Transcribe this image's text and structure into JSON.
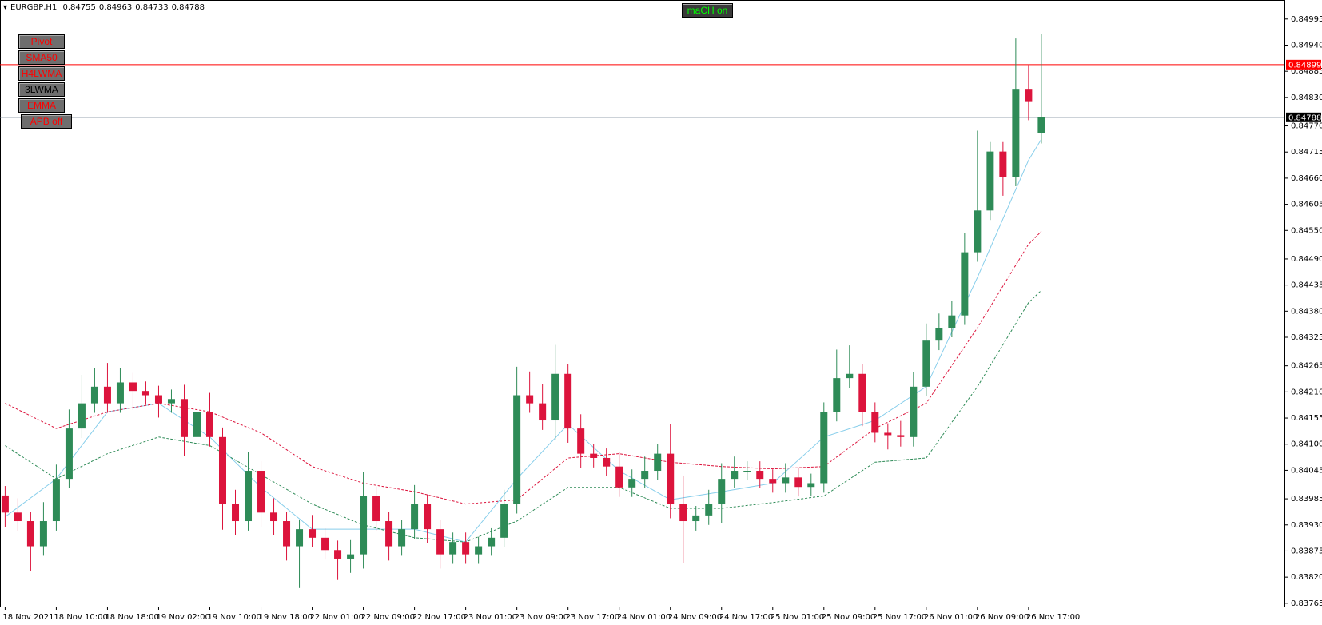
{
  "chart_data": {
    "type": "candlestick",
    "symbol": "EURGBP,H1",
    "up_color": "#2e8b57",
    "down_color": "#dc143c",
    "open": [
      0.83992,
      0.83956,
      0.83938,
      0.83885,
      0.83938,
      0.84027,
      0.84133,
      0.84186,
      0.84221,
      0.84186,
      0.8423,
      0.84212,
      0.84203,
      0.84186,
      0.84195,
      0.84115,
      0.84168,
      0.84115,
      0.83974,
      0.83938,
      0.84044,
      0.83956,
      0.83938,
      0.83885,
      0.83921,
      0.83903,
      0.83877,
      0.83859,
      0.83868,
      0.83991,
      0.83938,
      0.83885,
      0.83921,
      0.83974,
      0.83921,
      0.83868,
      0.83894,
      0.83868,
      0.83885,
      0.83903,
      0.83974,
      0.84203,
      0.84186,
      0.8415,
      0.84248,
      0.84133,
      0.8408,
      0.84071,
      0.84053,
      0.84009,
      0.84027,
      0.84044,
      0.8408,
      0.83974,
      0.83938,
      0.8395,
      0.83974,
      0.84027,
      0.84044,
      0.84044,
      0.84027,
      0.84018,
      0.8403,
      0.8401,
      0.84018,
      0.84168,
      0.84239,
      0.84248,
      0.84168,
      0.84124,
      0.84119,
      0.84115,
      0.84221,
      0.84318,
      0.84345,
      0.84371,
      0.84504,
      0.84592,
      0.84716,
      0.84663,
      0.84848,
      0.84755
    ],
    "high": [
      0.84012,
      0.83986,
      0.83958,
      0.83978,
      0.84057,
      0.84173,
      0.84246,
      0.84261,
      0.84271,
      0.8426,
      0.8425,
      0.84232,
      0.84223,
      0.84215,
      0.84225,
      0.84265,
      0.84208,
      0.84135,
      0.84004,
      0.84084,
      0.84064,
      0.83986,
      0.83958,
      0.83941,
      0.83951,
      0.83923,
      0.83897,
      0.83898,
      0.84041,
      0.84011,
      0.83958,
      0.83941,
      0.84014,
      0.83994,
      0.83941,
      0.83914,
      0.83914,
      0.83905,
      0.83923,
      0.84004,
      0.84263,
      0.84253,
      0.84226,
      0.84309,
      0.84268,
      0.84163,
      0.841,
      0.84091,
      0.84083,
      0.84047,
      0.84074,
      0.841,
      0.84142,
      0.84034,
      0.8397,
      0.84004,
      0.8406,
      0.84074,
      0.84064,
      0.84064,
      0.84047,
      0.8406,
      0.8405,
      0.84038,
      0.84188,
      0.84299,
      0.84308,
      0.84268,
      0.84188,
      0.84144,
      0.84149,
      0.84251,
      0.84354,
      0.84375,
      0.84401,
      0.84544,
      0.8476,
      0.84736,
      0.84736,
      0.84954,
      0.84898,
      0.84963
    ],
    "low": [
      0.83926,
      0.83918,
      0.83832,
      0.83865,
      0.83918,
      0.84007,
      0.84113,
      0.84166,
      0.84166,
      0.84166,
      0.84172,
      0.84183,
      0.84156,
      0.84166,
      0.84075,
      0.84055,
      0.84095,
      0.8392,
      0.83908,
      0.83918,
      0.83926,
      0.83908,
      0.83855,
      0.83797,
      0.83883,
      0.83857,
      0.83814,
      0.83829,
      0.83838,
      0.83918,
      0.83855,
      0.83865,
      0.83901,
      0.83891,
      0.83838,
      0.83848,
      0.83848,
      0.83848,
      0.83865,
      0.83883,
      0.83954,
      0.84166,
      0.8413,
      0.8411,
      0.84103,
      0.8405,
      0.84051,
      0.84033,
      0.83989,
      0.83989,
      0.84007,
      0.84024,
      0.83944,
      0.8385,
      0.83918,
      0.8393,
      0.83934,
      0.84007,
      0.84024,
      0.84007,
      0.83998,
      0.83998,
      0.8399,
      0.8399,
      0.83998,
      0.84148,
      0.84219,
      0.84138,
      0.84104,
      0.84089,
      0.84095,
      0.84095,
      0.84201,
      0.84298,
      0.84325,
      0.84351,
      0.84484,
      0.84572,
      0.84623,
      0.84643,
      0.84782,
      0.84733
    ],
    "close": [
      0.83956,
      0.83938,
      0.83885,
      0.83938,
      0.84027,
      0.84133,
      0.84186,
      0.84221,
      0.84186,
      0.8423,
      0.84212,
      0.84203,
      0.84186,
      0.84195,
      0.84115,
      0.84168,
      0.84115,
      0.83974,
      0.83938,
      0.84044,
      0.83956,
      0.83938,
      0.83885,
      0.83921,
      0.83903,
      0.83877,
      0.83859,
      0.83868,
      0.83991,
      0.83938,
      0.83885,
      0.83921,
      0.83974,
      0.83921,
      0.83868,
      0.83894,
      0.83868,
      0.83885,
      0.83903,
      0.83974,
      0.84203,
      0.84186,
      0.8415,
      0.84248,
      0.84133,
      0.8408,
      0.84071,
      0.84053,
      0.84009,
      0.84027,
      0.84044,
      0.8408,
      0.83974,
      0.83938,
      0.8395,
      0.83974,
      0.84027,
      0.84044,
      0.84044,
      0.84027,
      0.84018,
      0.8403,
      0.8401,
      0.84018,
      0.84168,
      0.84239,
      0.84248,
      0.84168,
      0.84124,
      0.84119,
      0.84115,
      0.84221,
      0.84318,
      0.84345,
      0.84371,
      0.84504,
      0.84592,
      0.84716,
      0.84663,
      0.84848,
      0.84822,
      0.84788
    ],
    "xlim": [
      -0.4,
      100
    ],
    "xticks": [
      {
        "value": 0,
        "label": "18 Nov 2021"
      },
      {
        "value": 4,
        "label": "18 Nov 10:00"
      },
      {
        "value": 8,
        "label": "18 Nov 18:00"
      },
      {
        "value": 12,
        "label": "19 Nov 02:00"
      },
      {
        "value": 16,
        "label": "19 Nov 10:00"
      },
      {
        "value": 20,
        "label": "19 Nov 18:00"
      },
      {
        "value": 24,
        "label": "22 Nov 01:00"
      },
      {
        "value": 28,
        "label": "22 Nov 09:00"
      },
      {
        "value": 32,
        "label": "22 Nov 17:00"
      },
      {
        "value": 36,
        "label": "23 Nov 01:00"
      },
      {
        "value": 40,
        "label": "23 Nov 09:00"
      },
      {
        "value": 44,
        "label": "23 Nov 17:00"
      },
      {
        "value": 48,
        "label": "24 Nov 01:00"
      },
      {
        "value": 52,
        "label": "24 Nov 09:00"
      },
      {
        "value": 56,
        "label": "24 Nov 17:00"
      },
      {
        "value": 60,
        "label": "25 Nov 01:00"
      },
      {
        "value": 64,
        "label": "25 Nov 09:00"
      },
      {
        "value": 68,
        "label": "25 Nov 17:00"
      },
      {
        "value": 72,
        "label": "26 Nov 01:00"
      },
      {
        "value": 76,
        "label": "26 Nov 09:00"
      },
      {
        "value": 80,
        "label": "26 Nov 17:00"
      }
    ],
    "ylim": [
      0.83758,
      0.8503
    ],
    "yticks": [
      0.84995,
      {
        "value": 0.8494,
        "label": "0.84940"
      },
      0.84885,
      {
        "value": 0.8483,
        "label": "0.84830"
      },
      {
        "value": 0.8477,
        "label": "0.84770"
      },
      0.84715,
      {
        "value": 0.8466,
        "label": "0.84660"
      },
      0.84605,
      {
        "value": 0.8455,
        "label": "0.84550"
      },
      {
        "value": 0.8449,
        "label": "0.84490"
      },
      0.84435,
      {
        "value": 0.8438,
        "label": "0.84380"
      },
      0.84325,
      0.84265,
      {
        "value": 0.8421,
        "label": "0.84210"
      },
      0.84155,
      {
        "value": 0.841,
        "label": "0.84100"
      },
      0.84045,
      0.83985,
      {
        "value": 0.8393,
        "label": "0.83930"
      },
      0.83875,
      {
        "value": 0.8382,
        "label": "0.83820"
      },
      0.83765
    ],
    "lines": [
      {
        "color": "#87ceeb",
        "dash": false,
        "x": [
          0,
          4,
          8,
          12,
          16,
          20,
          24,
          28,
          32,
          36,
          40,
          44,
          48,
          52,
          56,
          60,
          64,
          68,
          72,
          76,
          80,
          81
        ],
        "values": [
          0.83947,
          0.84027,
          0.84168,
          0.84186,
          0.84115,
          0.84009,
          0.83921,
          0.83921,
          0.83921,
          0.83894,
          0.84027,
          0.84142,
          0.84044,
          0.83983,
          0.84,
          0.84018,
          0.84115,
          0.8415,
          0.84221,
          0.84451,
          0.84698,
          0.84742
        ]
      },
      {
        "color": "#dc143c",
        "dash": true,
        "x": [
          0,
          4,
          8,
          12,
          16,
          20,
          24,
          28,
          32,
          36,
          40,
          44,
          48,
          52,
          56,
          60,
          64,
          68,
          72,
          76,
          80,
          81
        ],
        "values": [
          0.84186,
          0.84133,
          0.84168,
          0.84186,
          0.84168,
          0.84124,
          0.84053,
          0.84018,
          0.84,
          0.83974,
          0.83983,
          0.84071,
          0.8408,
          0.84062,
          0.84053,
          0.84048,
          0.84053,
          0.84133,
          0.84186,
          0.84345,
          0.84521,
          0.84548
        ]
      },
      {
        "color": "#2e8b57",
        "dash": true,
        "x": [
          0,
          4,
          8,
          12,
          16,
          20,
          24,
          28,
          32,
          36,
          40,
          44,
          48,
          52,
          56,
          60,
          64,
          68,
          72,
          76,
          80,
          81
        ],
        "values": [
          0.84097,
          0.84027,
          0.8408,
          0.84115,
          0.84097,
          0.84036,
          0.83974,
          0.8393,
          0.83903,
          0.83894,
          0.83938,
          0.84009,
          0.84009,
          0.83965,
          0.83965,
          0.83977,
          0.83991,
          0.84062,
          0.84071,
          0.84221,
          0.84398,
          0.84424
        ]
      }
    ],
    "price_lines": [
      {
        "value": 0.84899,
        "color": "#ff0000",
        "label_color": "#ff0000"
      },
      {
        "value": 0.84788,
        "color": "#778899",
        "label_color": "#000000"
      }
    ],
    "buttons": [
      {
        "label": "Pivot",
        "color": "#ff0000"
      },
      {
        "label": "SMA50",
        "color": "#ff0000"
      },
      {
        "label": "H4LWMA",
        "color": "#ff0000"
      },
      {
        "label": "3LWMA",
        "color": "#000000"
      },
      {
        "label": "EMMA",
        "color": "#ff0000"
      },
      {
        "label": "APB off",
        "color": "#ff0000"
      }
    ],
    "toggle": {
      "label": "maCH on",
      "color": "#00ff00"
    }
  }
}
